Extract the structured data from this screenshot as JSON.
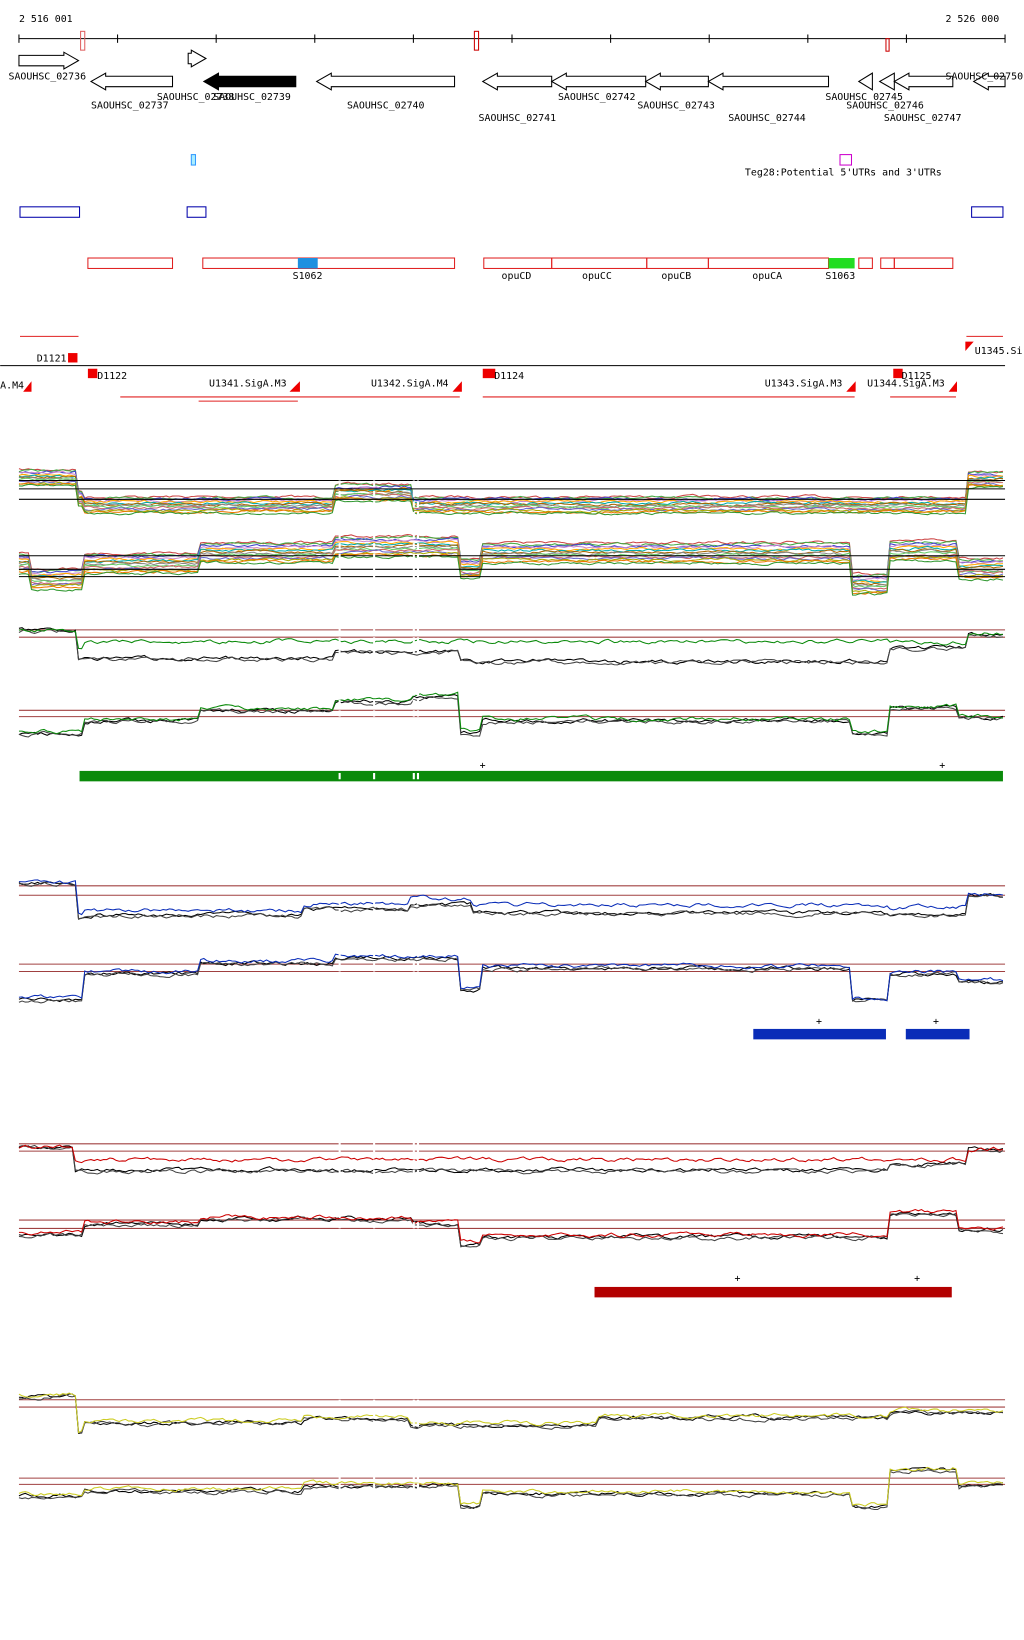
{
  "ruler": {
    "start": "2 516 001",
    "end": "2 526 000"
  },
  "genes": [
    "SAOUHSC_02736",
    "SAOUHSC_02737",
    "SAOUHSC_02738",
    "SAOUHSC_02739",
    "SAOUHSC_02740",
    "SAOUHSC_02741",
    "SAOUHSC_02742",
    "SAOUHSC_02743",
    "SAOUHSC_02744",
    "SAOUHSC_02745",
    "SAOUHSC_02746",
    "SAOUHSC_02747",
    "SAOUHSC_02750"
  ],
  "teg_label": "Teg28:Potential 5'UTRs and 3'UTRs",
  "features": [
    "S1062",
    "opuCD",
    "opuCC",
    "opuCB",
    "opuCA",
    "S1063"
  ],
  "promoters": [
    "D1121",
    "D1122",
    "D1124",
    "D1125"
  ],
  "transcripts": [
    "A.M4",
    "U1341.SigA.M3",
    "U1342.SigA.M4",
    "U1343.SigA.M3",
    "U1344.SigA.M3",
    "U1345.Si"
  ],
  "plus_marks": [
    "+",
    "+",
    "+",
    "+",
    "+",
    "+"
  ]
}
